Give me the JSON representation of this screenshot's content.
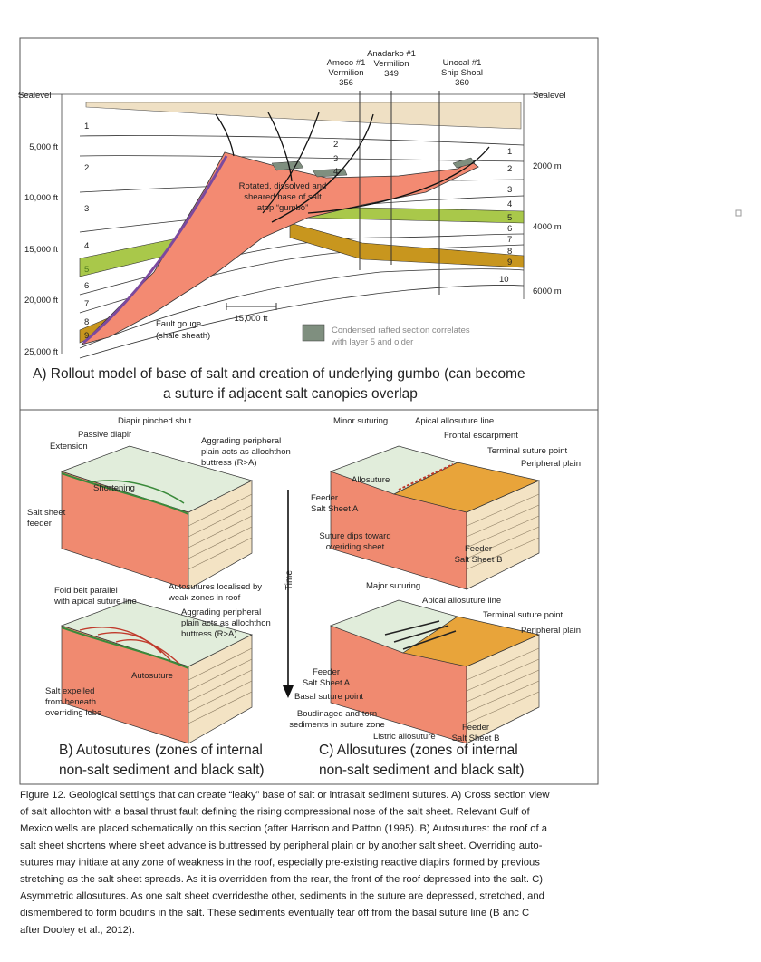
{
  "panel_a": {
    "sealevel": [
      "Sealevel",
      "Sealevel"
    ],
    "wells": [
      [
        "Amoco #1",
        "Vermilion",
        "356"
      ],
      [
        "Anadarko #1",
        "Vermilion",
        "349"
      ],
      [
        "Unocal #1",
        "Ship Shoal",
        "360"
      ]
    ],
    "depth_ft": [
      "5,000 ft",
      "10,000 ft",
      "15,000 ft",
      "20,000 ft",
      "25,000 ft"
    ],
    "depth_m": [
      "2000 m",
      "4000 m",
      "6000 m"
    ],
    "layers_left": [
      "1",
      "2",
      "3",
      "4",
      "5",
      "6",
      "7",
      "8",
      "9"
    ],
    "layers_mid": [
      "2",
      "3",
      "4"
    ],
    "layers_right": [
      "1",
      "2",
      "3",
      "4",
      "5",
      "6",
      "7",
      "8",
      "9",
      "10"
    ],
    "salt_note": [
      "Rotated, dissolved  and",
      "sheared base of salt",
      "atop “gumbo”"
    ],
    "fault_note": [
      "Fault gouge",
      "(shale sheath)"
    ],
    "scale": "15,000 ft",
    "legend": [
      "Condensed rafted section correlates",
      "with layer 5 and older"
    ],
    "caption": [
      "A)  Rollout model of base of salt and creation of underlying gumbo (can become",
      "a suture if adjacent salt canopies overlap"
    ]
  },
  "panel_b": {
    "top": {
      "diapir": "Diapir pinched shut",
      "passive": "Passive diapir",
      "extension": "Extension",
      "aggrading": [
        "Aggrading peripheral",
        "plain acts as allochthon",
        "buttress (R>A)"
      ],
      "shortening": "Shortening",
      "feeder": [
        "Salt sheet",
        "feeder"
      ]
    },
    "bottom": {
      "fold_belt": [
        "Fold belt parallel",
        "with apical suture line"
      ],
      "autosutures": [
        "Autosutures localised by",
        "weak zones in roof"
      ],
      "aggrading": [
        "Aggrading peripheral",
        "plain acts as allochthon",
        "buttress (R>A)"
      ],
      "autosuture": "Autosuture",
      "expelled": [
        "Salt expelled",
        "from beneath",
        "overriding lobe"
      ]
    },
    "caption": [
      "B) Autosutures (zones of internal",
      "non-salt sediment and black salt)"
    ]
  },
  "time": "Time",
  "panel_c": {
    "top": {
      "minor": "Minor suturing",
      "apical": "Apical allosuture line",
      "frontal": "Frontal escarpment",
      "terminal": "Terminal suture point",
      "plain": "Peripheral plain",
      "allosuture": "Allosuture",
      "feeder_a": [
        "Feeder",
        "Salt Sheet A"
      ],
      "dips": [
        "Suture dips toward",
        "overiding sheet"
      ],
      "feeder_b": [
        "Feeder",
        "Salt Sheet B"
      ]
    },
    "bottom": {
      "major": "Major suturing",
      "apical": "Apical allosuture line",
      "terminal": "Terminal suture point",
      "plain": "Peripheral plain",
      "feeder_a": [
        "Feeder",
        "Salt Sheet A"
      ],
      "basal": "Basal suture point",
      "boudinaged": [
        "Boudinaged and torn",
        "sediments in suture zone"
      ],
      "listric": "Listric allosuture",
      "feeder_b": [
        "Feeder",
        "Salt Sheet B"
      ]
    },
    "caption": [
      "C) Allosutures (zones of internal",
      "non-salt sediment and black salt)"
    ]
  },
  "figure_caption": [
    "Figure 12. Geological settings that can create “leaky” base of salt or intrasalt sediment sutures. A) Cross section view",
    "of salt allochton with a basal thrust fault defining the rising compressional nose of the salt sheet. Relevant Gulf of",
    "Mexico wells are placed schematically on this section (after Harrison and Patton (1995). B) Autosutures: the roof of a",
    "salt sheet shortens where sheet advance is buttressed by peripheral plain or by another salt sheet. Overriding auto-",
    "sutures may initiate at any zone of weakness in the roof, especially pre-existing reactive diapirs formed by previous",
    "stretching as the salt sheet spreads. As it is overridden from the rear, the front of the roof depressed into the salt. C)",
    "Asymmetric allosutures. As one salt sheet overridesthe other, sediments in the suture are depressed, stretched, and",
    "dismembered to form boudins in the salt. These sediments eventually tear off from the basal suture line (B anc C",
    "after Dooley et al., 2012)."
  ]
}
